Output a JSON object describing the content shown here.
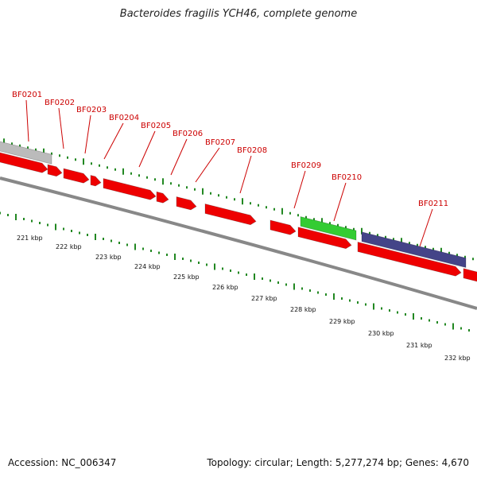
{
  "title": "Bacteroides fragilis YCH46, complete genome",
  "footer": {
    "accession": "Accession: NC_006347",
    "summary": "Topology: circular; Length: 5,277,274 bp; Genes: 4,670"
  },
  "colors": {
    "forward_gene": "#ee0000",
    "highlight_green": "#33cc33",
    "highlight_purple": "#444488",
    "grey_gene": "#bbbbbb",
    "ruler_tick": "#228822",
    "label_red": "#cc0000",
    "backbone": "#888888"
  },
  "gene_labels": [
    "BF0201",
    "BF0202",
    "BF0203",
    "BF0204",
    "BF0205",
    "BF0206",
    "BF0207",
    "BF0208",
    "BF0209",
    "BF0210",
    "BF0211"
  ],
  "kbp_labels": [
    "221 kbp",
    "222 kbp",
    "223 kbp",
    "224 kbp",
    "225 kbp",
    "226 kbp",
    "227 kbp",
    "228 kbp",
    "229 kbp",
    "230 kbp",
    "231 kbp",
    "232 kbp"
  ]
}
